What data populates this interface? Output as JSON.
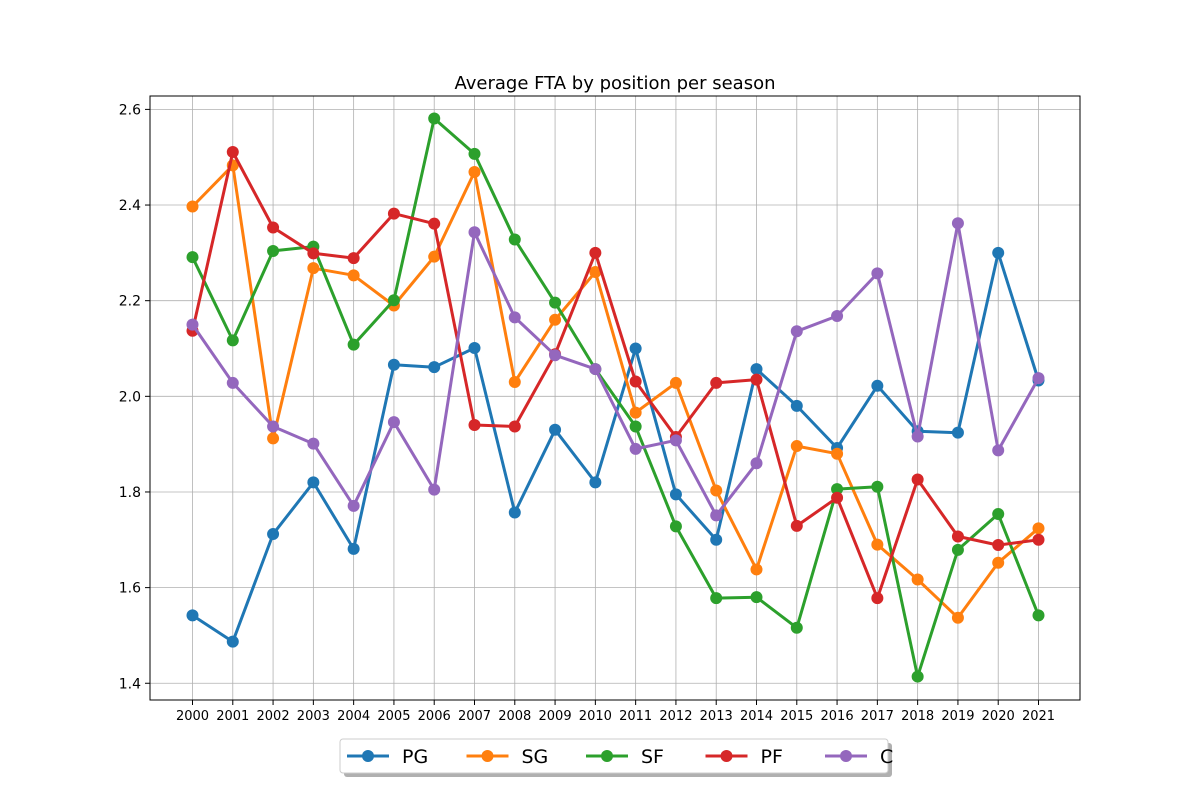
{
  "chart_data": {
    "type": "line",
    "title": "Average FTA by position per season",
    "xlabel": "",
    "ylabel": "",
    "categories": [
      "2000",
      "2001",
      "2002",
      "2003",
      "2004",
      "2005",
      "2006",
      "2007",
      "2008",
      "2009",
      "2010",
      "2011",
      "2012",
      "2013",
      "2014",
      "2015",
      "2016",
      "2017",
      "2018",
      "2019",
      "2020",
      "2021"
    ],
    "ylim": [
      1.365,
      2.628
    ],
    "yticks": [
      "1.4",
      "1.6",
      "1.8",
      "2.0",
      "2.2",
      "2.4",
      "2.6"
    ],
    "grid": true,
    "legend_position": "bottom-center",
    "series": [
      {
        "name": "PG",
        "color": "#1f77b4",
        "values": [
          1.542,
          1.487,
          1.712,
          1.82,
          1.681,
          2.066,
          2.061,
          2.101,
          1.757,
          1.93,
          1.82,
          2.1,
          1.795,
          1.7,
          2.057,
          1.98,
          1.892,
          2.022,
          1.927,
          1.924,
          2.3,
          2.033
        ]
      },
      {
        "name": "SG",
        "color": "#ff7f0e",
        "values": [
          2.397,
          2.483,
          1.912,
          2.268,
          2.253,
          2.19,
          2.292,
          2.469,
          2.03,
          2.16,
          2.26,
          1.966,
          2.028,
          1.803,
          1.638,
          1.896,
          1.88,
          1.69,
          1.617,
          1.537,
          1.652,
          1.724
        ]
      },
      {
        "name": "SF",
        "color": "#2ca02c",
        "values": [
          2.291,
          2.117,
          2.304,
          2.313,
          2.108,
          2.201,
          2.581,
          2.507,
          2.328,
          2.196,
          2.057,
          1.937,
          1.728,
          1.578,
          1.58,
          1.516,
          1.806,
          1.811,
          1.414,
          1.679,
          1.754,
          1.542
        ]
      },
      {
        "name": "PF",
        "color": "#d62728",
        "values": [
          2.137,
          2.511,
          2.353,
          2.299,
          2.289,
          2.382,
          2.361,
          1.94,
          1.937,
          2.088,
          2.3,
          2.031,
          1.915,
          2.028,
          2.035,
          1.729,
          1.788,
          1.578,
          1.826,
          1.707,
          1.689,
          1.7
        ]
      },
      {
        "name": "C",
        "color": "#9467bd",
        "values": [
          2.15,
          2.028,
          1.937,
          1.901,
          1.771,
          1.946,
          1.805,
          2.343,
          2.165,
          2.086,
          2.057,
          1.89,
          1.908,
          1.751,
          1.86,
          2.136,
          2.168,
          2.257,
          1.916,
          2.362,
          1.887,
          2.038
        ]
      }
    ]
  }
}
